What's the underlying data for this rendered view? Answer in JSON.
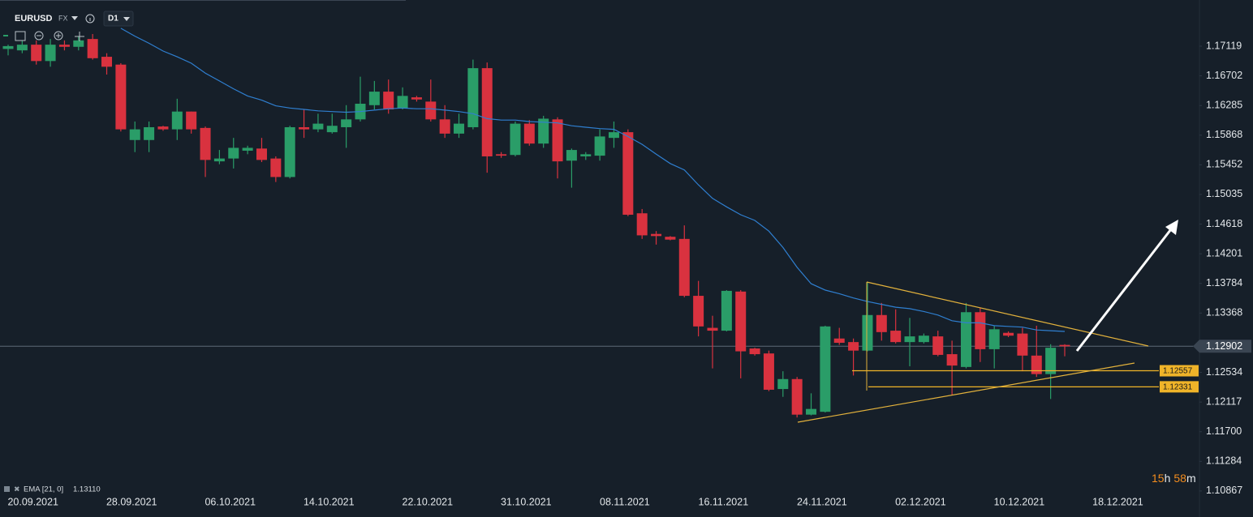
{
  "chart_data": {
    "type": "candlestick",
    "symbol": "EURUSD",
    "market": "FX",
    "timeframe": "D1",
    "categories": [
      null,
      null,
      "20.09.2021",
      null,
      null,
      null,
      null,
      null,
      null,
      "28.09.2021",
      null,
      null,
      null,
      null,
      null,
      null,
      "06.10.2021",
      null,
      null,
      null,
      null,
      null,
      null,
      "14.10.2021",
      null,
      null,
      null,
      null,
      null,
      null,
      "22.10.2021",
      null,
      null,
      null,
      null,
      null,
      null,
      "31.10.2021",
      null,
      null,
      null,
      null,
      null,
      null,
      "08.11.2021",
      null,
      null,
      null,
      null,
      null,
      null,
      "16.11.2021",
      null,
      null,
      null,
      null,
      null,
      null,
      "24.11.2021",
      null,
      null,
      null,
      null,
      null,
      null,
      "02.12.2021",
      null,
      null,
      null,
      null,
      null,
      null,
      "10.12.2021",
      null,
      null,
      null,
      null,
      null,
      null,
      "18.12.2021"
    ],
    "open": [
      1.1708,
      1.1706,
      1.1714,
      1.1691,
      1.1714,
      1.1711,
      1.1722,
      1.1697,
      1.1686,
      1.158,
      1.158,
      1.1599,
      1.1595,
      1.162,
      1.1597,
      1.155,
      1.1554,
      1.1565,
      1.1568,
      1.1554,
      1.1528,
      1.1598,
      1.1595,
      1.1591,
      1.1598,
      1.1609,
      1.1629,
      1.1648,
      1.1625,
      1.164,
      1.1634,
      1.1609,
      1.1589,
      1.1598,
      1.1681,
      1.156,
      1.1559,
      1.1603,
      1.1575,
      1.1609,
      1.1551,
      1.1557,
      1.1558,
      1.1583,
      1.1591,
      1.1477,
      1.1448,
      1.1444,
      1.1441,
      1.1361,
      1.1316,
      1.1312,
      1.1367,
      1.1287,
      1.128,
      1.123,
      1.1244,
      1.1194,
      1.1198,
      1.1301,
      1.1296,
      1.1284,
      1.1334,
      1.1312,
      1.1296,
      1.1296,
      1.1304,
      1.1279,
      1.1261,
      1.1338,
      1.1286,
      1.1309,
      1.1308,
      1.1277,
      1.1251,
      1.1292,
      null,
      null,
      null,
      null
    ],
    "high": [
      1.1714,
      1.172,
      1.172,
      1.1722,
      1.172,
      1.1726,
      1.1729,
      1.1702,
      1.1688,
      1.1606,
      1.1606,
      1.16,
      1.1638,
      1.162,
      1.1599,
      1.1566,
      1.1583,
      1.1572,
      1.1583,
      1.1557,
      1.16,
      1.1623,
      1.1617,
      1.1617,
      1.1629,
      1.1669,
      1.1663,
      1.1665,
      1.1654,
      1.1642,
      1.1665,
      1.1629,
      1.1617,
      1.1693,
      1.1689,
      1.1563,
      1.1606,
      1.1608,
      1.1614,
      1.1612,
      1.1568,
      1.1563,
      1.1595,
      1.1606,
      1.1595,
      1.1483,
      1.1452,
      1.1445,
      1.146,
      1.1382,
      1.1333,
      1.1369,
      1.1369,
      1.1288,
      1.1284,
      1.1255,
      1.1247,
      1.1224,
      1.1319,
      1.1316,
      1.1301,
      1.138,
      1.1351,
      1.1342,
      1.133,
      1.1308,
      1.1312,
      1.1298,
      1.1351,
      1.1344,
      1.1319,
      1.1311,
      1.1316,
      1.1319,
      1.1293,
      1.1293,
      null,
      null,
      null,
      null
    ],
    "low": [
      1.1699,
      1.1702,
      1.1686,
      1.1683,
      1.1706,
      1.1706,
      1.1693,
      1.1672,
      1.1592,
      1.1563,
      1.1563,
      1.1593,
      1.158,
      1.1589,
      1.1528,
      1.1546,
      1.154,
      1.156,
      1.1549,
      1.1521,
      1.1526,
      1.1583,
      1.1591,
      1.1589,
      1.1569,
      1.1606,
      1.1623,
      1.1617,
      1.1623,
      1.1634,
      1.1606,
      1.1583,
      1.1583,
      1.1595,
      1.1534,
      1.1555,
      1.1557,
      1.1572,
      1.1569,
      1.1526,
      1.1513,
      1.1552,
      1.1551,
      1.1569,
      1.1473,
      1.1441,
      1.1433,
      1.1439,
      1.1359,
      1.1304,
      1.1259,
      1.1311,
      1.1245,
      1.1277,
      1.1227,
      1.1219,
      1.119,
      1.1193,
      1.1197,
      1.1292,
      1.1249,
      1.1283,
      1.1298,
      1.1294,
      1.1262,
      1.1294,
      1.1276,
      1.1221,
      1.1259,
      1.1268,
      1.1259,
      1.1303,
      1.1255,
      1.1247,
      1.1216,
      1.1276,
      null,
      null,
      null,
      null
    ],
    "close": [
      1.1712,
      1.1714,
      1.1691,
      1.1714,
      1.1711,
      1.172,
      1.1695,
      1.1683,
      1.1595,
      1.1595,
      1.1598,
      1.1595,
      1.162,
      1.1595,
      1.1552,
      1.1554,
      1.1569,
      1.1569,
      1.1552,
      1.1528,
      1.1598,
      1.1595,
      1.1603,
      1.16,
      1.1609,
      1.1631,
      1.1648,
      1.1623,
      1.1642,
      1.1637,
      1.1609,
      1.1589,
      1.1603,
      1.1681,
      1.1557,
      1.1558,
      1.1603,
      1.1575,
      1.161,
      1.155,
      1.1566,
      1.156,
      1.1585,
      1.1591,
      1.1475,
      1.1446,
      1.1445,
      1.144,
      1.1361,
      1.1318,
      1.1312,
      1.1368,
      1.1283,
      1.1279,
      1.1229,
      1.1244,
      1.1194,
      1.1202,
      1.1318,
      1.1295,
      1.1284,
      1.1334,
      1.131,
      1.1296,
      1.1304,
      1.1305,
      1.1278,
      1.1263,
      1.1338,
      1.1286,
      1.1314,
      1.1305,
      1.1277,
      1.1251,
      1.1288,
      1.129,
      null,
      null,
      null,
      null
    ],
    "up_color": "#2a9d68",
    "down_color": "#d9323f",
    "ylim": [
      1.10843,
      1.17768
    ],
    "yticks": [
      1.17119,
      1.16702,
      1.16285,
      1.15868,
      1.15452,
      1.15035,
      1.14618,
      1.14201,
      1.13784,
      1.13368,
      1.12534,
      1.12117,
      {
        "value": 1.117,
        "label": "1.11700"
      },
      1.11284,
      1.10867
    ],
    "ema": {
      "name": "EMA [21, 0]",
      "color": "#2f7fd0",
      "values": [
        null,
        null,
        null,
        null,
        null,
        null,
        null,
        null,
        1.1737,
        1.1726,
        1.1716,
        1.1705,
        1.1697,
        1.1688,
        1.1674,
        1.1663,
        1.1652,
        1.1642,
        1.1636,
        1.1628,
        1.1625,
        1.1623,
        1.1621,
        1.162,
        1.1619,
        1.162,
        1.1622,
        1.1624,
        1.1625,
        1.1624,
        1.1624,
        1.1622,
        1.162,
        1.1617,
        1.161,
        1.1608,
        1.1608,
        1.1606,
        1.1605,
        1.1604,
        1.16,
        1.1598,
        1.1596,
        1.1595,
        1.1585,
        1.1574,
        1.156,
        1.1547,
        1.1538,
        1.1517,
        1.1498,
        1.1486,
        1.1475,
        1.1467,
        1.1452,
        1.1429,
        1.1401,
        1.1378,
        1.1369,
        1.1364,
        1.1358,
        1.1353,
        1.1349,
        1.1345,
        1.1343,
        1.1339,
        1.1334,
        1.1326,
        1.1323,
        1.1323,
        1.1319,
        1.1318,
        1.1317,
        1.1313,
        1.1312,
        1.1311,
        null,
        null,
        null,
        null
      ],
      "last": {
        "value": 1.1311,
        "label": "1.13110"
      }
    },
    "levels": [
      1.12557,
      1.12331
    ],
    "level_color": "#f0b429",
    "current_price": 1.12902,
    "timer": [
      "15",
      "h",
      "58",
      "m"
    ]
  }
}
